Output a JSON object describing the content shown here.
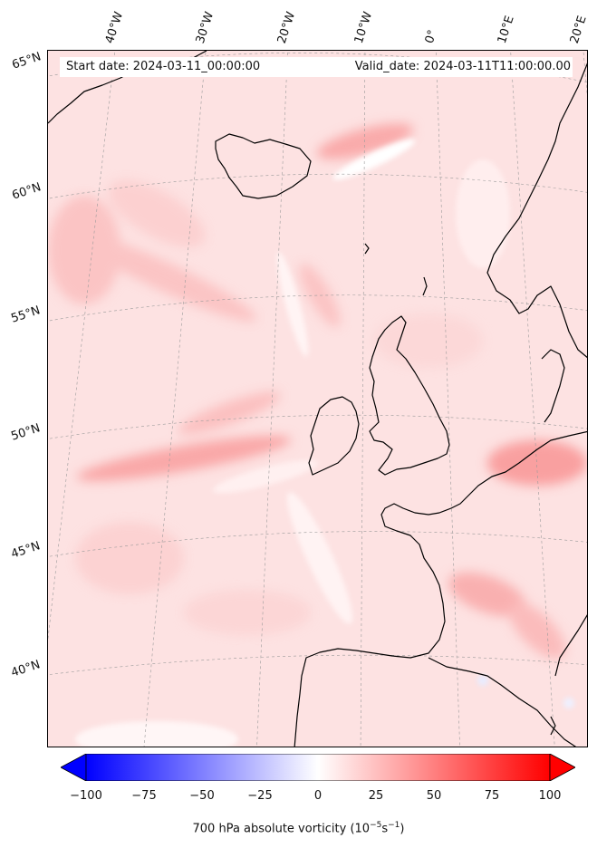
{
  "header": {
    "start_date": "Start date: 2024-03-11_00:00:00",
    "valid_date": "Valid_date: 2024-03-11T11:00:00.00"
  },
  "axes": {
    "longitude_labels": [
      "40°W",
      "30°W",
      "20°W",
      "10°W",
      "0°",
      "10°E",
      "20°E"
    ],
    "latitude_labels": [
      "65°N",
      "60°N",
      "55°N",
      "50°N",
      "45°N",
      "40°N"
    ],
    "gridlines": true
  },
  "colorbar": {
    "label_prefix": "700 hPa absolute vorticity (10",
    "label_exp1": "−5",
    "label_mid": "s",
    "label_exp2": "−1",
    "label_suffix": ")",
    "ticks": [
      "−100",
      "−75",
      "−50",
      "−25",
      "0",
      "25",
      "50",
      "75",
      "100"
    ],
    "range": [
      -100,
      100
    ],
    "low_color": "#0000ff",
    "mid_color": "#ffffff",
    "high_color": "#ff0000",
    "extend": "both"
  },
  "colors": {
    "background_field": "#fde3e3",
    "coastline": "#000000"
  }
}
